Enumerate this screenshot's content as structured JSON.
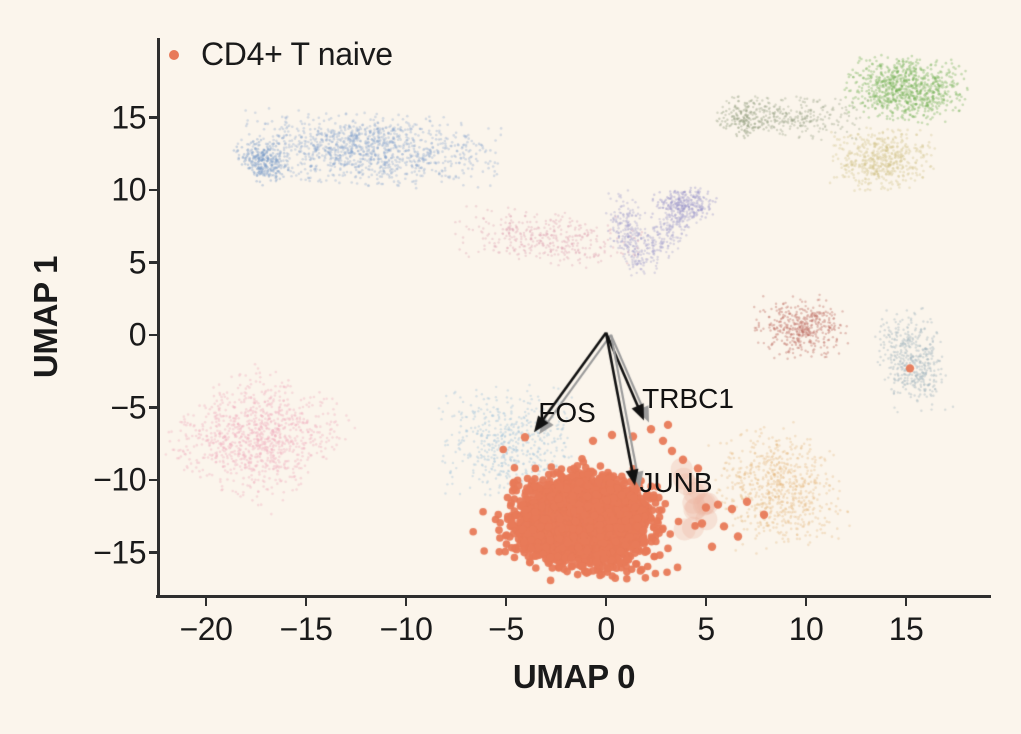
{
  "figure": {
    "background": "#FBF5EC",
    "text_color": "#1A1A1A",
    "spine_color": "#2E2E2E"
  },
  "chart_data": {
    "type": "scatter",
    "title": "",
    "xlabel": "UMAP 0",
    "ylabel": "UMAP 1",
    "xlim": [
      -22.45,
      19.25
    ],
    "ylim": [
      -17.9,
      20.5
    ],
    "grid": false,
    "legend_position": "upper left",
    "x_tick_values": [
      -20,
      -15,
      -10,
      -5,
      0,
      5,
      10,
      15
    ],
    "x_tick_labels": [
      "−20",
      "−15",
      "−10",
      "−5",
      "0",
      "5",
      "10",
      "15"
    ],
    "y_tick_values": [
      15,
      10,
      5,
      0,
      -5,
      -10,
      -15
    ],
    "y_tick_labels": [
      "15",
      "10",
      "5",
      "0",
      "−5",
      "−10",
      "−15"
    ],
    "legend": [
      {
        "label": "CD4+ T naive",
        "color": "#E87A59"
      }
    ],
    "series": [
      {
        "name": "CD4+ T naive",
        "color": "#E87A59",
        "marker_radius_px": 3.8,
        "alpha": 0.95,
        "blobs": [
          {
            "cx": -1.15,
            "cy": -12.9,
            "sx": 1.6,
            "sy": 1.45,
            "rot": -12,
            "n": 2800,
            "clip": 2.5
          },
          {
            "cx": -1.0,
            "cy": -12.6,
            "sx": 2.1,
            "sy": 1.8,
            "rot": -12,
            "n": 220,
            "clip": 2.6
          }
        ],
        "outliers": [
          [
            15.2,
            -2.3
          ],
          [
            -4.05,
            -7.05
          ],
          [
            2.25,
            -6.5
          ],
          [
            2.85,
            -7.3
          ],
          [
            3.3,
            -8.0
          ],
          [
            3.85,
            -8.6
          ],
          [
            1.35,
            -7.0
          ],
          [
            0.3,
            -6.9
          ],
          [
            -0.65,
            -7.3
          ],
          [
            5.0,
            -11.9
          ],
          [
            5.6,
            -11.7
          ],
          [
            6.3,
            -12.0
          ],
          [
            4.8,
            -13.0
          ],
          [
            5.9,
            -13.2
          ],
          [
            7.9,
            -12.4
          ],
          [
            7.05,
            -11.5
          ],
          [
            4.6,
            -9.2
          ],
          [
            5.3,
            -14.6
          ],
          [
            6.6,
            -13.9
          ],
          [
            3.1,
            -6.2
          ]
        ]
      }
    ],
    "background_clusters": [
      {
        "name": "upper-left-blue-dome",
        "cx": -11.9,
        "cy": 12.8,
        "sx": 3.0,
        "sy": 1.15,
        "rot": -4,
        "n": 1200,
        "color": "#7A9CC9",
        "alpha": 0.3,
        "r": 1.3,
        "clip": 2.2
      },
      {
        "name": "upper-left-blue-hook",
        "cx": -17.1,
        "cy": 12.0,
        "sx": 0.55,
        "sy": 0.75,
        "rot": 25,
        "n": 260,
        "color": "#7A9CC9",
        "alpha": 0.38,
        "r": 1.3,
        "clip": 2.2
      },
      {
        "name": "top-right-green",
        "cx": 15.0,
        "cy": 17.0,
        "sx": 1.4,
        "sy": 1.05,
        "rot": -8,
        "n": 800,
        "color": "#6FAE4F",
        "alpha": 0.36,
        "r": 1.3,
        "clip": 2.2
      },
      {
        "name": "olive-gray-trail",
        "cx": 9.2,
        "cy": 15.1,
        "sx": 1.9,
        "sy": 0.75,
        "rot": -6,
        "n": 300,
        "color": "#8D9878",
        "alpha": 0.33,
        "r": 1.2,
        "clip": 2.0
      },
      {
        "name": "olive-gray-knot",
        "cx": 6.9,
        "cy": 14.9,
        "sx": 0.6,
        "sy": 0.6,
        "rot": 0,
        "n": 120,
        "color": "#8D9878",
        "alpha": 0.4,
        "r": 1.2,
        "clip": 2.2
      },
      {
        "name": "right-khaki",
        "cx": 13.8,
        "cy": 12.1,
        "sx": 1.2,
        "sy": 1.0,
        "rot": 0,
        "n": 500,
        "color": "#CFC083",
        "alpha": 0.33,
        "r": 1.3,
        "clip": 2.2
      },
      {
        "name": "mid-pink-trail",
        "cx": -3.0,
        "cy": 6.7,
        "sx": 2.2,
        "sy": 0.85,
        "rot": -7,
        "n": 380,
        "color": "#DE9FB0",
        "alpha": 0.35,
        "r": 1.2,
        "clip": 2.2
      },
      {
        "name": "violet-check-left-arm",
        "cx": 1.15,
        "cy": 7.0,
        "sx": 1.35,
        "sy": 0.5,
        "rot": -79,
        "n": 220,
        "color": "#9A97CB",
        "alpha": 0.34,
        "r": 1.2,
        "clip": 2.2
      },
      {
        "name": "violet-check-right-arm",
        "cx": 3.2,
        "cy": 7.2,
        "sx": 1.7,
        "sy": 0.5,
        "rot": 58,
        "n": 280,
        "color": "#9A97CB",
        "alpha": 0.34,
        "r": 1.2,
        "clip": 2.0
      },
      {
        "name": "violet-check-top",
        "cx": 3.9,
        "cy": 9.0,
        "sx": 0.75,
        "sy": 0.55,
        "rot": 0,
        "n": 220,
        "color": "#9A97CB",
        "alpha": 0.4,
        "r": 1.2,
        "clip": 2.2
      },
      {
        "name": "mid-right-brick",
        "cx": 9.8,
        "cy": 0.5,
        "sx": 1.0,
        "sy": 0.95,
        "rot": 0,
        "n": 420,
        "color": "#BE6E64",
        "alpha": 0.4,
        "r": 1.2,
        "clip": 2.4
      },
      {
        "name": "far-right-bluegray",
        "cx": 15.3,
        "cy": -1.7,
        "sx": 0.75,
        "sy": 1.6,
        "rot": 8,
        "n": 450,
        "color": "#9FB3BF",
        "alpha": 0.4,
        "r": 1.2,
        "clip": 2.3
      },
      {
        "name": "left-pink-blob",
        "cx": -17.4,
        "cy": -6.9,
        "sx": 1.9,
        "sy": 2.1,
        "rot": -35,
        "n": 1000,
        "color": "#EFAEBC",
        "alpha": 0.38,
        "r": 1.3,
        "clip": 2.0
      },
      {
        "name": "fos-light-blue",
        "cx": -4.9,
        "cy": -7.4,
        "sx": 1.6,
        "sy": 1.8,
        "rot": 0,
        "n": 550,
        "color": "#A8C6DC",
        "alpha": 0.42,
        "r": 1.2,
        "clip": 2.2
      },
      {
        "name": "lower-right-tan",
        "cx": 8.6,
        "cy": -10.6,
        "sx": 1.45,
        "sy": 2.0,
        "rot": 10,
        "n": 700,
        "color": "#E2AF70",
        "alpha": 0.3,
        "r": 1.3,
        "clip": 2.2
      },
      {
        "name": "salmon-soft-patch",
        "cx": 4.5,
        "cy": -11.6,
        "sx": 0.55,
        "sy": 1.4,
        "rot": 0,
        "n": 14,
        "color": "#EAB49E",
        "alpha": 0.3,
        "r": 11,
        "clip": 1.8
      }
    ],
    "annotations": [
      {
        "label": "FOS",
        "origin": [
          0.0,
          0.15
        ],
        "tip": [
          -3.6,
          -6.7
        ],
        "text_center": [
          -1.95,
          -5.4
        ]
      },
      {
        "label": "TRBC1",
        "origin": [
          0.0,
          0.15
        ],
        "tip": [
          1.9,
          -5.9
        ],
        "text_center": [
          4.1,
          -4.4
        ]
      },
      {
        "label": "JUNB",
        "origin": [
          0.0,
          0.15
        ],
        "tip": [
          1.45,
          -10.4
        ],
        "text_center": [
          3.5,
          -10.2
        ]
      }
    ],
    "annotation_style": {
      "arrow_color": "#111111",
      "arrow_shadow_color": "#9B9B9B",
      "text_color": "#111111"
    }
  }
}
